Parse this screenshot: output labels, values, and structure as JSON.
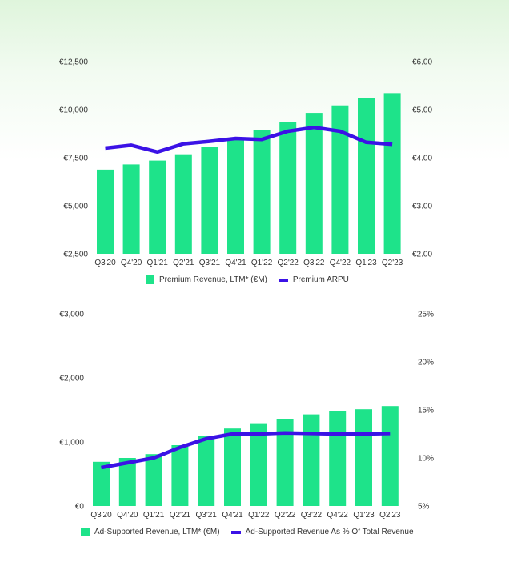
{
  "colors": {
    "bar": "#1ee38a",
    "line": "#3b12e6"
  },
  "chart_data": [
    {
      "type": "bar",
      "categories": [
        "Q3'20",
        "Q4'20",
        "Q1'21",
        "Q2'21",
        "Q3'21",
        "Q4'21",
        "Q1'22",
        "Q2'22",
        "Q3'22",
        "Q4'22",
        "Q1'23",
        "Q2'23"
      ],
      "series": [
        {
          "name": "Premium Revenue, LTM* (€M)",
          "type": "bar",
          "axis": "left",
          "values": [
            6880,
            7150,
            7350,
            7680,
            8050,
            8450,
            8920,
            9350,
            9830,
            10220,
            10590,
            10860
          ]
        },
        {
          "name": "Premium ARPU",
          "type": "line",
          "axis": "right",
          "values": [
            4.2,
            4.26,
            4.12,
            4.29,
            4.34,
            4.4,
            4.38,
            4.55,
            4.63,
            4.55,
            4.32,
            4.28
          ]
        }
      ],
      "y_left": {
        "ylim": [
          2500,
          12500
        ],
        "ticks": [
          "€2,500",
          "€5,000",
          "€7,500",
          "€10,000",
          "€12,500"
        ]
      },
      "y_right": {
        "ylim": [
          2,
          6
        ],
        "ticks": [
          "€2.00",
          "€3.00",
          "€4.00",
          "€5.00",
          "€6.00"
        ]
      },
      "legend": "bottom-center",
      "grid": false
    },
    {
      "type": "bar",
      "categories": [
        "Q3'20",
        "Q4'20",
        "Q1'21",
        "Q2'21",
        "Q3'21",
        "Q4'21",
        "Q1'22",
        "Q2'22",
        "Q3'22",
        "Q4'22",
        "Q1'23",
        "Q2'23"
      ],
      "series": [
        {
          "name": "Ad-Supported Revenue, LTM* (€M)",
          "type": "bar",
          "axis": "left",
          "values": [
            690,
            750,
            810,
            950,
            1090,
            1210,
            1280,
            1360,
            1430,
            1480,
            1510,
            1560
          ]
        },
        {
          "name": "Ad-Supported Revenue As % Of Total Revenue",
          "type": "line",
          "axis": "right",
          "values": [
            9.0,
            9.5,
            10.0,
            11.1,
            12.0,
            12.5,
            12.5,
            12.6,
            12.55,
            12.5,
            12.5,
            12.55
          ]
        }
      ],
      "y_left": {
        "ylim": [
          0,
          3000
        ],
        "ticks": [
          "€0",
          "€1,000",
          "€2,000",
          "€3,000"
        ]
      },
      "y_right": {
        "ylim": [
          5,
          25
        ],
        "ticks": [
          "5%",
          "10%",
          "15%",
          "20%",
          "25%"
        ]
      },
      "legend": "bottom-center",
      "grid": false
    }
  ]
}
